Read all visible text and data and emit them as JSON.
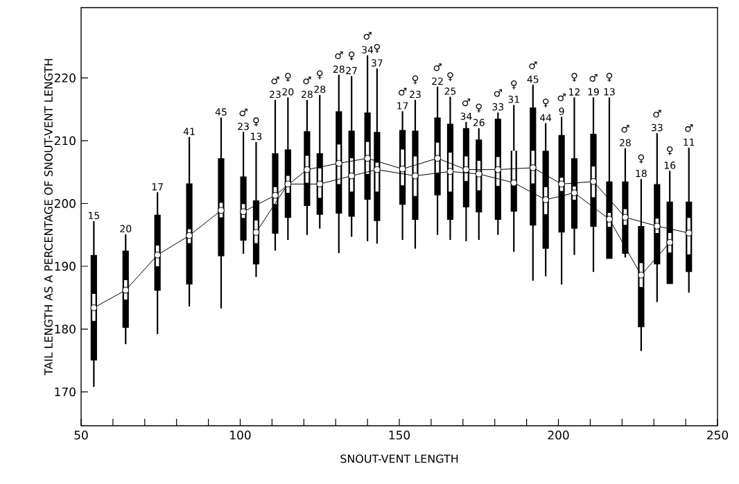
{
  "chart_data": {
    "type": "bar",
    "xlabel": "SNOUT-VENT LENGTH",
    "ylabel": "TAIL LENGTH AS A PERCENTAGE OF SNOUT-VENT LENGTH",
    "xlim": [
      50,
      250
    ],
    "ylim": [
      164.6,
      231.2
    ],
    "xticks": [
      50,
      {
        "value": 60,
        "label": null
      },
      {
        "value": 70,
        "label": null
      },
      {
        "value": 80,
        "label": null
      },
      {
        "value": 90,
        "label": null
      },
      100,
      {
        "value": 110,
        "label": null
      },
      {
        "value": 120,
        "label": null
      },
      {
        "value": 130,
        "label": null
      },
      {
        "value": 140,
        "label": null
      },
      150,
      {
        "value": 160,
        "label": null
      },
      {
        "value": 170,
        "label": null
      },
      {
        "value": 180,
        "label": null
      },
      {
        "value": 190,
        "label": null
      },
      200,
      {
        "value": 210,
        "label": null
      },
      {
        "value": 220,
        "label": null
      },
      {
        "value": 230,
        "label": null
      },
      {
        "value": 240,
        "label": null
      },
      250
    ],
    "yticks": [
      170,
      180,
      190,
      200,
      210,
      220
    ],
    "annotations": [
      {
        "text": "15",
        "x": 54,
        "y": 197.2
      },
      {
        "text": "20",
        "x": 64,
        "y": 195.1
      },
      {
        "text": "17",
        "x": 74,
        "y": 201.8
      },
      {
        "text": "41",
        "x": 84,
        "y": 210.6
      },
      {
        "text": "45",
        "x": 94,
        "y": 213.7
      },
      {
        "text": "23",
        "x": 101,
        "y": 211.4
      },
      {
        "text": "23",
        "x": 111,
        "y": 216.5
      },
      {
        "text": "28",
        "x": 121,
        "y": 216.5
      },
      {
        "text": "28",
        "x": 131,
        "y": 220.5
      },
      {
        "text": "34",
        "x": 140,
        "y": 223.6
      },
      {
        "text": "17",
        "x": 151,
        "y": 214.7
      },
      {
        "text": "22",
        "x": 162,
        "y": 218.6
      },
      {
        "text": "34",
        "x": 171,
        "y": 213.0
      },
      {
        "text": "33",
        "x": 181,
        "y": 214.5
      },
      {
        "text": "45",
        "x": 192,
        "y": 218.9
      },
      {
        "text": "9",
        "x": 201,
        "y": 213.8
      },
      {
        "text": "19",
        "x": 211,
        "y": 216.9
      },
      {
        "text": "28",
        "x": 221,
        "y": 208.8
      },
      {
        "text": "33",
        "x": 231,
        "y": 211.2
      },
      {
        "text": "11",
        "x": 241,
        "y": 208.9
      },
      {
        "text": "13",
        "x": 105,
        "y": 209.8
      },
      {
        "text": "20",
        "x": 115,
        "y": 216.9
      },
      {
        "text": "28",
        "x": 125,
        "y": 217.3
      },
      {
        "text": "27",
        "x": 135,
        "y": 220.3
      },
      {
        "text": "37",
        "x": 143,
        "y": 221.5
      },
      {
        "text": "23",
        "x": 155,
        "y": 216.5
      },
      {
        "text": "25",
        "x": 166,
        "y": 217.0
      },
      {
        "text": "26",
        "x": 175,
        "y": 212.0
      },
      {
        "text": "31",
        "x": 186,
        "y": 215.7
      },
      {
        "text": "44",
        "x": 196,
        "y": 212.8
      },
      {
        "text": "12",
        "x": 205,
        "y": 216.9
      },
      {
        "text": "13",
        "x": 216,
        "y": 216.9
      },
      {
        "text": "18",
        "x": 226,
        "y": 203.9
      },
      {
        "text": "16",
        "x": 235,
        "y": 205.2
      }
    ],
    "series": [
      {
        "type": "line",
        "color": "#000000",
        "marker": "circle",
        "x": [
          54,
          64,
          74,
          84,
          94
        ],
        "values": [
          183.4,
          186.2,
          191.8,
          194.9,
          198.9
        ],
        "errors": [
          [
            170.8,
            197.2
          ],
          [
            177.6,
            195.1
          ],
          [
            179.2,
            201.8
          ],
          [
            183.6,
            210.6
          ],
          [
            183.3,
            213.7
          ]
        ]
      },
      {
        "color": "#000000",
        "x": [
          54,
          64,
          74,
          84,
          94
        ],
        "base": [
          175.0,
          180.2,
          186.1,
          187.1,
          191.6
        ],
        "values": [
          16.8,
          12.3,
          12.1,
          16.1,
          15.6
        ]
      },
      {
        "color": "#ffffff",
        "x": [
          54,
          64,
          74,
          84,
          94
        ],
        "base": [
          181.3,
          184.7,
          190.0,
          193.7,
          197.8
        ],
        "values": [
          4.3,
          3.1,
          3.3,
          2.2,
          2.3
        ]
      },
      {
        "type": "line",
        "name": "♂",
        "color": "#000000",
        "marker": "circle",
        "x": [
          101,
          111,
          121,
          131,
          140,
          151,
          162,
          171,
          181,
          192,
          201,
          211,
          221,
          231,
          241
        ],
        "values": [
          198.7,
          201.3,
          205.4,
          206.4,
          207.2,
          205.5,
          207.2,
          205.4,
          205.4,
          205.7,
          203.1,
          203.5,
          197.8,
          196.4,
          195.3
        ],
        "errors": [
          [
            192.0,
            211.4
          ],
          [
            192.5,
            216.5
          ],
          [
            195.0,
            216.5
          ],
          [
            192.1,
            220.5
          ],
          [
            194.0,
            223.6
          ],
          [
            194.2,
            214.7
          ],
          [
            195.0,
            218.6
          ],
          [
            194.0,
            213.0
          ],
          [
            195.0,
            214.5
          ],
          [
            187.7,
            218.9
          ],
          [
            187.1,
            213.8
          ],
          [
            189.1,
            216.9
          ],
          [
            191.4,
            208.8
          ],
          [
            184.3,
            211.2
          ],
          [
            185.8,
            208.9
          ]
        ]
      },
      {
        "color": "#000000",
        "x": [
          101,
          111,
          121,
          131,
          140,
          151,
          162,
          171,
          181,
          192,
          201,
          211,
          221,
          231,
          241
        ],
        "base": [
          194.1,
          195.2,
          199.6,
          198.4,
          200.6,
          199.8,
          201.3,
          199.4,
          197.4,
          196.5,
          195.4,
          196.3,
          192.0,
          190.3,
          189.1
        ],
        "values": [
          10.2,
          12.8,
          11.9,
          16.3,
          13.9,
          11.9,
          12.4,
          12.6,
          16.1,
          18.8,
          15.5,
          14.8,
          11.5,
          12.8,
          11.2
        ]
      },
      {
        "color": "#ffffff",
        "x": [
          101,
          111,
          121,
          131,
          140,
          151,
          162,
          171,
          181,
          192,
          201,
          211,
          221,
          231,
          241
        ],
        "base": [
          197.7,
          199.9,
          203.3,
          203.1,
          204.7,
          202.9,
          204.9,
          203.6,
          202.8,
          203.2,
          202.0,
          201.0,
          196.6,
          195.3,
          191.9
        ],
        "values": [
          2.2,
          2.7,
          4.3,
          6.3,
          5.1,
          5.7,
          4.8,
          3.9,
          4.6,
          5.2,
          2.1,
          4.9,
          2.5,
          2.3,
          5.8
        ]
      },
      {
        "type": "line",
        "name": "♀",
        "color": "#000000",
        "marker": "circle",
        "x": [
          105,
          115,
          125,
          135,
          143,
          155,
          166,
          175,
          186,
          196,
          205,
          216,
          226,
          235
        ],
        "values": [
          195.4,
          203.1,
          203.1,
          204.4,
          205.4,
          204.4,
          205.1,
          204.7,
          203.3,
          200.6,
          201.7,
          197.5,
          188.6,
          193.8
        ],
        "errors": [
          [
            188.3,
            209.8
          ],
          [
            194.2,
            216.9
          ],
          [
            196.0,
            217.3
          ],
          [
            194.7,
            220.3
          ],
          [
            193.6,
            221.5
          ],
          [
            192.8,
            216.5
          ],
          [
            194.2,
            217.0
          ],
          [
            194.2,
            212.0
          ],
          [
            192.3,
            215.7
          ],
          [
            188.4,
            212.8
          ],
          [
            191.8,
            216.9
          ],
          [
            191.3,
            216.9
          ],
          [
            176.5,
            203.9
          ],
          [
            187.2,
            205.2
          ]
        ]
      },
      {
        "color": "#000000",
        "x": [
          105,
          115,
          125,
          135,
          143,
          155,
          166,
          175,
          186,
          196,
          205,
          216,
          226,
          235
        ],
        "base": [
          190.3,
          197.7,
          198.2,
          197.9,
          197.2,
          197.4,
          197.4,
          198.6,
          198.7,
          192.8,
          196.0,
          191.2,
          180.3,
          187.2
        ],
        "values": [
          10.2,
          10.9,
          9.8,
          13.7,
          14.2,
          14.2,
          15.3,
          11.6,
          9.7,
          15.6,
          11.2,
          12.3,
          16.1,
          13.1
        ]
      },
      {
        "color": "#ffffff",
        "x": [
          105,
          115,
          125,
          135,
          143,
          155,
          166,
          175,
          186,
          196,
          205,
          216,
          226,
          235
        ],
        "base": [
          193.7,
          201.7,
          200.9,
          201.9,
          201.9,
          201.2,
          201.9,
          202.1,
          202.8,
          198.3,
          200.6,
          196.3,
          186.7,
          192.2
        ],
        "values": [
          3.6,
          2.7,
          4.7,
          5.3,
          4.6,
          6.3,
          6.2,
          4.7,
          5.6,
          4.3,
          2.1,
          2.2,
          3.8,
          3.1
        ]
      }
    ]
  }
}
